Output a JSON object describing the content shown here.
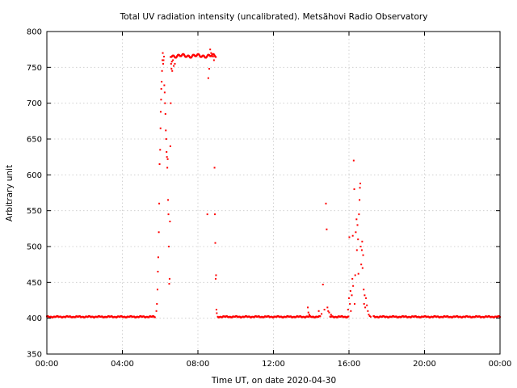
{
  "chart_data": {
    "type": "scatter",
    "title": "Total UV radiation intensity (uncalibrated). Metsähovi Radio Observatory",
    "xlabel": "Time UT, on date 2020-04-30",
    "ylabel": "Arbitrary unit",
    "x_unit": "hours UT",
    "xlim": [
      0,
      24
    ],
    "ylim": [
      350,
      800
    ],
    "x_ticks": [
      0,
      4,
      8,
      12,
      16,
      20,
      24
    ],
    "x_tick_labels": [
      "00:00",
      "04:00",
      "08:00",
      "12:00",
      "16:00",
      "20:00",
      "00:00"
    ],
    "y_ticks": [
      350,
      400,
      450,
      500,
      550,
      600,
      650,
      700,
      750,
      800
    ],
    "y_tick_labels": [
      "350",
      "400",
      "450",
      "500",
      "550",
      "600",
      "650",
      "700",
      "750",
      "800"
    ],
    "grid": true,
    "marker_color": "#ff0000",
    "series": [
      {
        "baseline_segments": [
          {
            "x_start": 0.0,
            "x_end": 5.75,
            "y": 402
          },
          {
            "x_start": 9.05,
            "x_end": 14.5,
            "y": 402
          },
          {
            "x_start": 15.0,
            "x_end": 16.0,
            "y": 402
          },
          {
            "x_start": 17.3,
            "x_end": 24.0,
            "y": 402
          }
        ],
        "plateau_segments": [
          {
            "x_start": 6.55,
            "x_end": 8.95,
            "y": 766
          }
        ],
        "points": [
          [
            5.8,
            410
          ],
          [
            5.83,
            420
          ],
          [
            5.86,
            440
          ],
          [
            5.88,
            465
          ],
          [
            5.9,
            485
          ],
          [
            5.93,
            520
          ],
          [
            5.95,
            560
          ],
          [
            5.97,
            615
          ],
          [
            6.0,
            635
          ],
          [
            6.02,
            665
          ],
          [
            6.03,
            688
          ],
          [
            6.05,
            705
          ],
          [
            6.06,
            720
          ],
          [
            6.08,
            730
          ],
          [
            6.1,
            745
          ],
          [
            6.12,
            760
          ],
          [
            6.14,
            770
          ],
          [
            6.16,
            755
          ],
          [
            6.18,
            760
          ],
          [
            6.2,
            765
          ],
          [
            6.22,
            725
          ],
          [
            6.24,
            715
          ],
          [
            6.26,
            700
          ],
          [
            6.28,
            685
          ],
          [
            6.3,
            662
          ],
          [
            6.32,
            650
          ],
          [
            6.34,
            632
          ],
          [
            6.36,
            625
          ],
          [
            6.38,
            610
          ],
          [
            6.4,
            622
          ],
          [
            6.42,
            565
          ],
          [
            6.44,
            545
          ],
          [
            6.46,
            500
          ],
          [
            6.48,
            448
          ],
          [
            6.5,
            455
          ],
          [
            6.52,
            535
          ],
          [
            6.54,
            640
          ],
          [
            6.56,
            700
          ],
          [
            6.58,
            755
          ],
          [
            6.6,
            748
          ],
          [
            6.62,
            758
          ],
          [
            6.64,
            745
          ],
          [
            6.68,
            760
          ],
          [
            6.72,
            752
          ],
          [
            6.78,
            755
          ],
          [
            8.5,
            545
          ],
          [
            8.55,
            735
          ],
          [
            8.6,
            748
          ],
          [
            8.65,
            775
          ],
          [
            8.7,
            770
          ],
          [
            8.75,
            768
          ],
          [
            8.8,
            765
          ],
          [
            8.85,
            760
          ],
          [
            8.88,
            610
          ],
          [
            8.9,
            545
          ],
          [
            8.92,
            505
          ],
          [
            8.94,
            455
          ],
          [
            8.96,
            460
          ],
          [
            8.98,
            412
          ],
          [
            9.0,
            407
          ],
          [
            13.82,
            415
          ],
          [
            13.85,
            408
          ],
          [
            13.9,
            405
          ],
          [
            14.4,
            410
          ],
          [
            14.55,
            406
          ],
          [
            14.62,
            447
          ],
          [
            14.7,
            412
          ],
          [
            14.78,
            560
          ],
          [
            14.82,
            524
          ],
          [
            14.86,
            415
          ],
          [
            14.9,
            410
          ],
          [
            14.95,
            408
          ],
          [
            15.05,
            405
          ],
          [
            15.95,
            412
          ],
          [
            16.0,
            428
          ],
          [
            16.02,
            513
          ],
          [
            16.05,
            420
          ],
          [
            16.08,
            438
          ],
          [
            16.1,
            410
          ],
          [
            16.15,
            432
          ],
          [
            16.18,
            455
          ],
          [
            16.2,
            515
          ],
          [
            16.22,
            445
          ],
          [
            16.25,
            620
          ],
          [
            16.28,
            580
          ],
          [
            16.3,
            420
          ],
          [
            16.33,
            460
          ],
          [
            16.36,
            520
          ],
          [
            16.4,
            538
          ],
          [
            16.42,
            495
          ],
          [
            16.45,
            530
          ],
          [
            16.48,
            510
          ],
          [
            16.5,
            462
          ],
          [
            16.53,
            545
          ],
          [
            16.56,
            565
          ],
          [
            16.58,
            582
          ],
          [
            16.6,
            588
          ],
          [
            16.62,
            500
          ],
          [
            16.65,
            475
          ],
          [
            16.68,
            495
          ],
          [
            16.7,
            507
          ],
          [
            16.72,
            470
          ],
          [
            16.75,
            488
          ],
          [
            16.78,
            440
          ],
          [
            16.8,
            420
          ],
          [
            16.83,
            432
          ],
          [
            16.86,
            415
          ],
          [
            16.9,
            428
          ],
          [
            16.95,
            418
          ],
          [
            17.0,
            410
          ],
          [
            17.05,
            405
          ],
          [
            17.1,
            403
          ],
          [
            17.15,
            402
          ]
        ]
      }
    ]
  }
}
